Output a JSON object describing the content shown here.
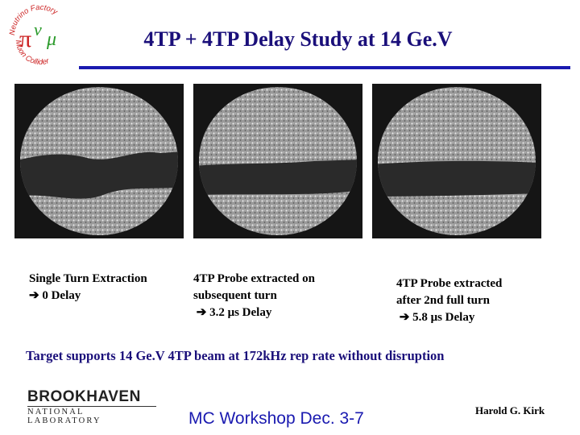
{
  "header": {
    "title": "4TP + 4TP Delay Study at 14 Ge.V",
    "logo_text_top": "Neutrino Factory",
    "logo_text_bottom": "Muon Collider",
    "logo_glyph_pi": "π",
    "logo_glyph_nu": "ν",
    "logo_glyph_mu": "μ"
  },
  "captions": [
    {
      "line1": "Single Turn Extraction",
      "line2": "0 Delay",
      "line3": ""
    },
    {
      "line1": "4TP Probe extracted on",
      "line2": "subsequent turn",
      "line3": "3.2 μs Delay"
    },
    {
      "line1": "4TP Probe extracted",
      "line2": "after 2nd full turn",
      "line3": "5.8 μs Delay"
    }
  ],
  "summary": "Target supports 14 Ge.V 4TP beam at 172kHz rep rate without disruption",
  "footer": {
    "lab_name": "BROOKHAVEN",
    "lab_subtitle": "NATIONAL LABORATORY",
    "workshop": "MC Workshop Dec. 3-7",
    "author": "Harold G. Kirk"
  },
  "colors": {
    "title": "#1a0f7a",
    "rule": "#1a1ab0",
    "logo_red": "#cc2222",
    "logo_green": "#2a9a2a"
  }
}
